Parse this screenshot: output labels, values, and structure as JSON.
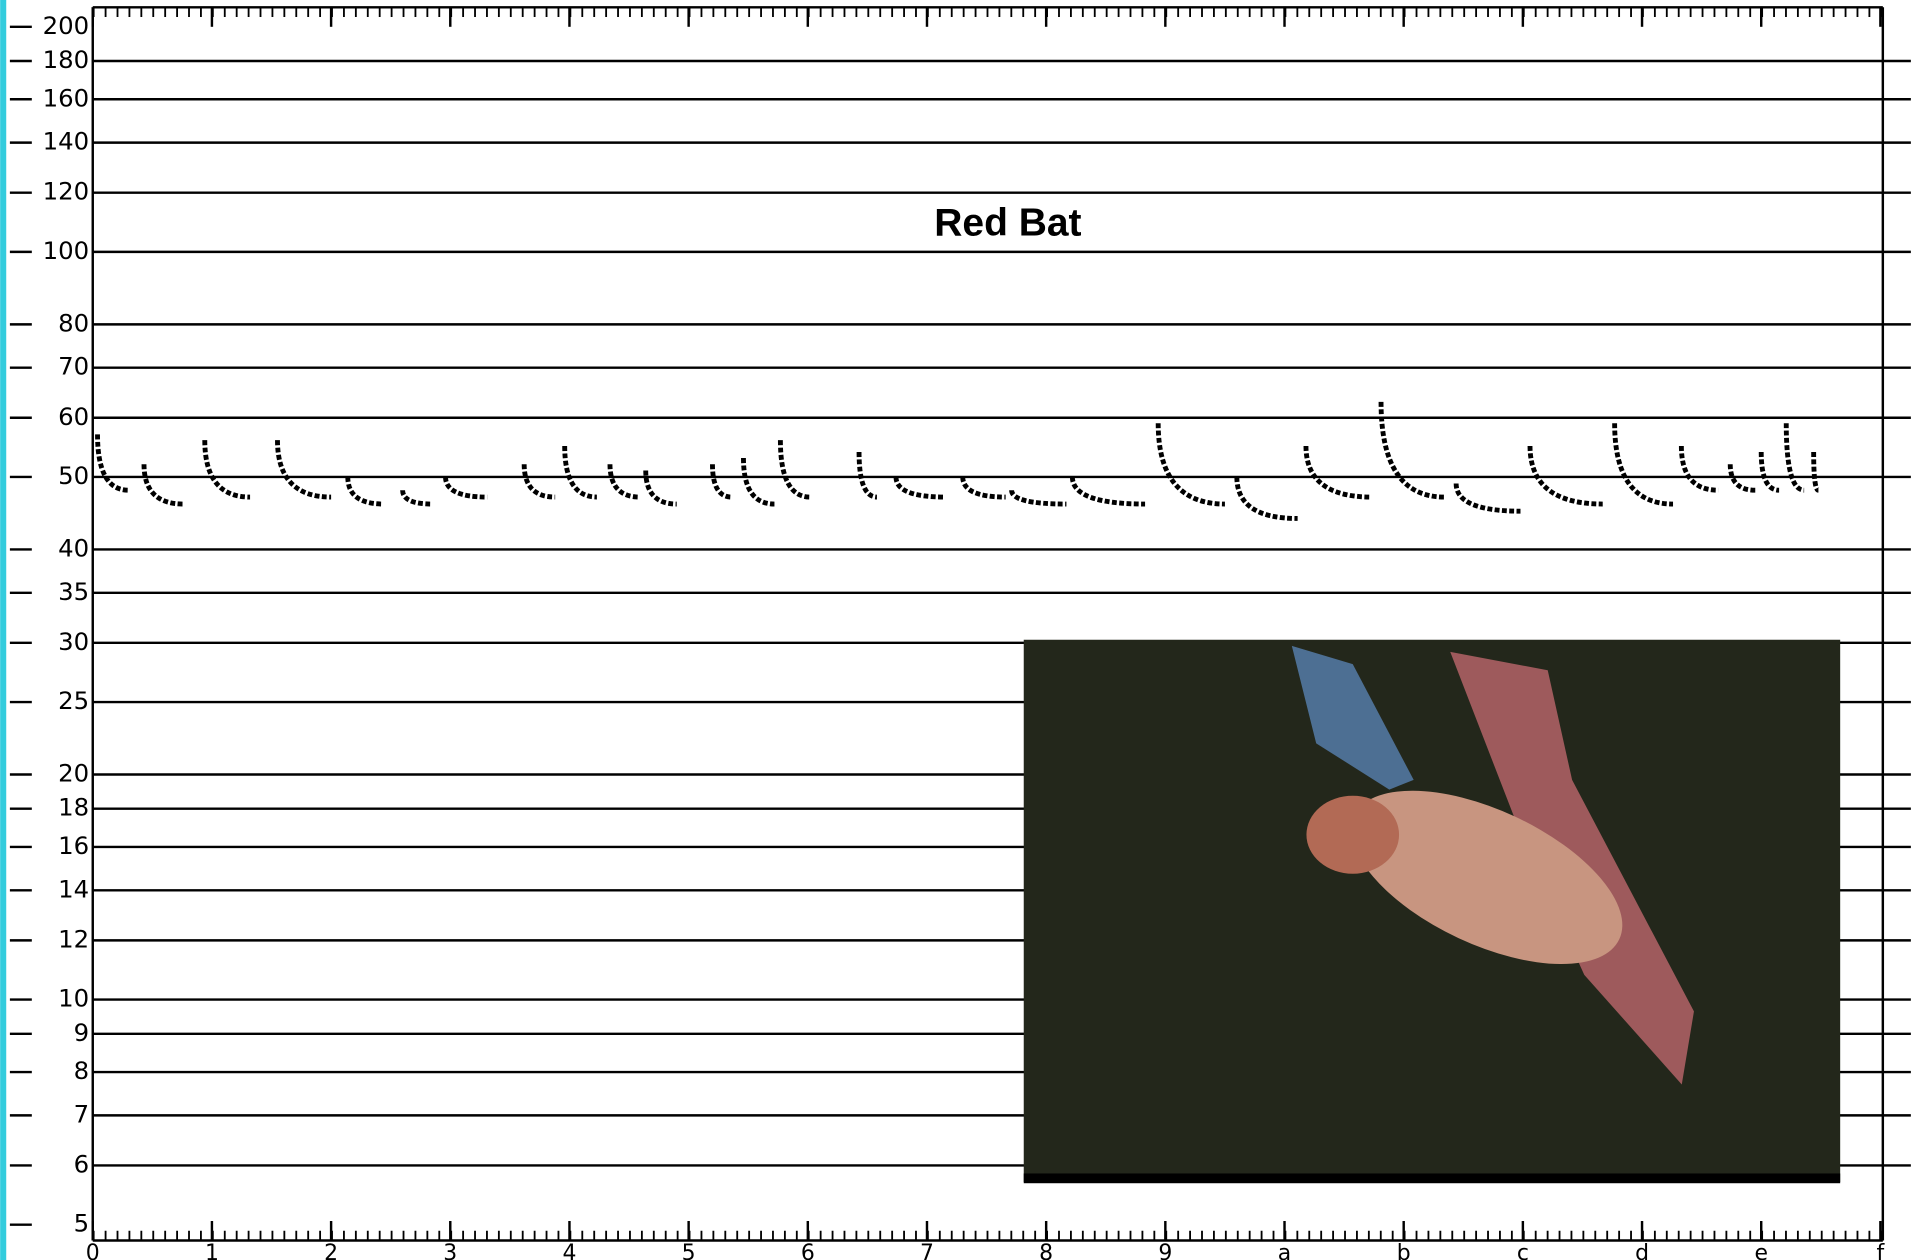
{
  "chart_data": {
    "type": "line",
    "title": "Red Bat",
    "yscale": "log",
    "ylim": [
      5,
      200
    ],
    "yticks": [
      200,
      180,
      160,
      140,
      120,
      100,
      80,
      70,
      60,
      50,
      40,
      35,
      30,
      25,
      20,
      18,
      16,
      14,
      12,
      10,
      9,
      8,
      7,
      6,
      5
    ],
    "xlim": [
      0,
      15
    ],
    "xticks": [
      0,
      1,
      2,
      3,
      4,
      5,
      6,
      7,
      8,
      9,
      {
        "value": 10,
        "label": "a"
      },
      {
        "value": 11,
        "label": "b"
      },
      {
        "value": 12,
        "label": "c"
      },
      {
        "value": 13,
        "label": "d"
      },
      {
        "value": 14,
        "label": "e"
      },
      {
        "value": 15,
        "label": "f"
      }
    ],
    "grid": true,
    "color": "#000000",
    "x": [
      0.04,
      0.3,
      null,
      0.43,
      0.76,
      null,
      0.94,
      1.32,
      null,
      1.55,
      2.0,
      null,
      2.14,
      2.44,
      null,
      2.6,
      2.85,
      null,
      2.96,
      3.31,
      null,
      3.62,
      3.88,
      null,
      3.96,
      4.23,
      null,
      4.34,
      4.59,
      null,
      4.64,
      4.9,
      null,
      5.2,
      5.36,
      null,
      5.46,
      5.72,
      null,
      5.77,
      6.02,
      null,
      6.43,
      6.58,
      null,
      6.74,
      7.15,
      null,
      7.3,
      7.66,
      null,
      7.71,
      8.17,
      null,
      8.22,
      8.83,
      null,
      8.94,
      9.5,
      null,
      9.6,
      10.11,
      null,
      10.18,
      10.73,
      null,
      10.81,
      11.34,
      null,
      11.44,
      11.98,
      null,
      12.06,
      12.67,
      null,
      12.77,
      13.26,
      null,
      13.33,
      13.64,
      null,
      13.74,
      13.95,
      null,
      14.0,
      14.15,
      null,
      14.21,
      14.36,
      null,
      14.44,
      14.48
    ],
    "values": [
      57,
      48,
      null,
      52,
      46,
      null,
      56,
      47,
      null,
      56,
      47,
      null,
      50,
      46,
      null,
      48,
      46,
      null,
      50,
      47,
      null,
      52,
      47,
      null,
      55,
      47,
      null,
      52,
      47,
      null,
      51,
      46,
      null,
      52,
      47,
      null,
      53,
      46,
      null,
      56,
      47,
      null,
      54,
      47,
      null,
      50,
      47,
      null,
      50,
      47,
      null,
      48,
      46,
      null,
      50,
      46,
      null,
      59,
      46,
      null,
      50,
      44,
      null,
      55,
      47,
      null,
      63,
      47,
      null,
      49,
      45,
      null,
      55,
      46,
      null,
      59,
      46,
      null,
      55,
      48,
      null,
      52,
      48,
      null,
      54,
      48,
      null,
      59,
      48,
      null,
      54,
      48
    ]
  }
}
